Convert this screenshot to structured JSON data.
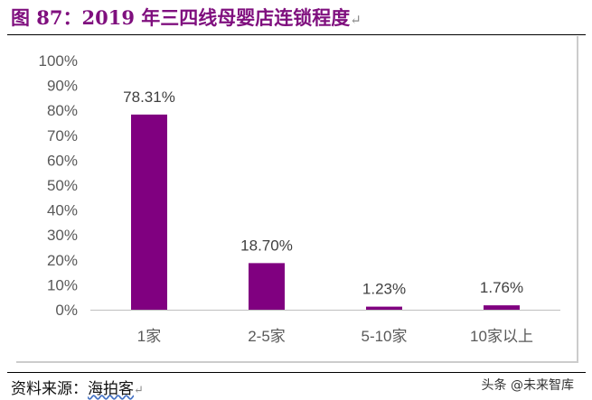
{
  "title": "图 87：2019 年三四线母婴店连锁程度",
  "source_label": "资料来源：",
  "source_publisher": "海拍客",
  "watermark": "头条 @未来智库",
  "chart_data": {
    "type": "bar",
    "categories": [
      "1家",
      "2-5家",
      "5-10家",
      "10家以上"
    ],
    "values": [
      78.31,
      18.7,
      1.23,
      1.76
    ],
    "data_labels": [
      "78.31%",
      "18.70%",
      "1.23%",
      "1.76%"
    ],
    "ylim": [
      0,
      100
    ],
    "yticks": [
      "0%",
      "10%",
      "20%",
      "30%",
      "40%",
      "50%",
      "60%",
      "70%",
      "80%",
      "90%",
      "100%"
    ],
    "grid": false,
    "bar_color": "#800080",
    "title": "",
    "xlabel": "",
    "ylabel": ""
  }
}
